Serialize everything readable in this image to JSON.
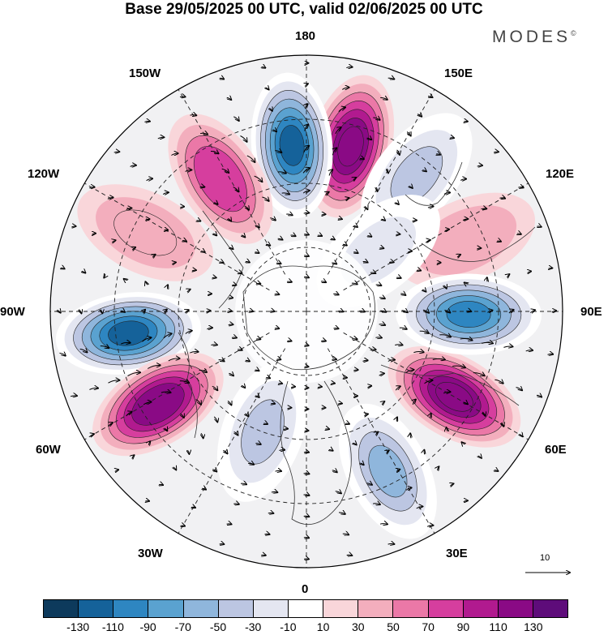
{
  "title": "Base 29/05/2025 00 UTC, valid 02/06/2025 00 UTC",
  "brand": "MODES",
  "brand_mark": "©",
  "longitude_labels": {
    "top": "180",
    "bottom": "0",
    "left": "90W",
    "right": "90E",
    "upper_left": "150W",
    "upper_right": "150E",
    "mid_upper_left": "120W",
    "mid_upper_right": "120E",
    "mid_lower_left": "60W",
    "mid_lower_right": "60E",
    "lower_left": "30W",
    "lower_right": "30E"
  },
  "reference_vector_label": "10",
  "colorbar": {
    "colors": [
      "#0d3a5c",
      "#15629a",
      "#2e86c1",
      "#5aa2d0",
      "#8fb6dc",
      "#bcc6e2",
      "#e4e6f1",
      "#ffffff",
      "#f9d6da",
      "#f3aebd",
      "#eb78a7",
      "#d63e9e",
      "#b11a8f",
      "#8a0a85",
      "#5e0c7a"
    ],
    "tick_labels": [
      "-130",
      "-110",
      "-90",
      "-70",
      "-50",
      "-30",
      "-10",
      "10",
      "30",
      "50",
      "70",
      "90",
      "110",
      "130"
    ]
  },
  "field_cells": [
    {
      "name": "cell-pos-northpacific",
      "lon": 165,
      "colat": 40,
      "value": 120
    },
    {
      "name": "cell-neg-dateline",
      "lon": -175,
      "colat": 39,
      "value": -125
    },
    {
      "name": "cell-pos-alaska",
      "lon": -147,
      "colat": 37,
      "value": 75
    },
    {
      "name": "cell-neg-kamchatka",
      "lon": 141,
      "colat": 41,
      "value": -40
    },
    {
      "name": "cell-pos-eastasia",
      "lon": 114,
      "colat": 41,
      "value": 35
    },
    {
      "name": "cell-pos-canada",
      "lon": -116,
      "colat": 42,
      "value": 40
    },
    {
      "name": "cell-neg-hudson",
      "lon": -83,
      "colat": 42,
      "value": -120
    },
    {
      "name": "cell-pos-atlantic",
      "lon": -58,
      "colat": 41,
      "value": 115
    },
    {
      "name": "cell-neg-greenland",
      "lon": -20,
      "colat": 30,
      "value": -40
    },
    {
      "name": "cell-neg-europe",
      "lon": 27,
      "colat": 42,
      "value": -70
    },
    {
      "name": "cell-pos-russia",
      "lon": 60,
      "colat": 40,
      "value": 120
    },
    {
      "name": "cell-neg-siberia",
      "lon": 89,
      "colat": 38,
      "value": -100
    },
    {
      "name": "cell-neg-arctic",
      "lon": 130,
      "colat": 22,
      "value": -30
    }
  ]
}
